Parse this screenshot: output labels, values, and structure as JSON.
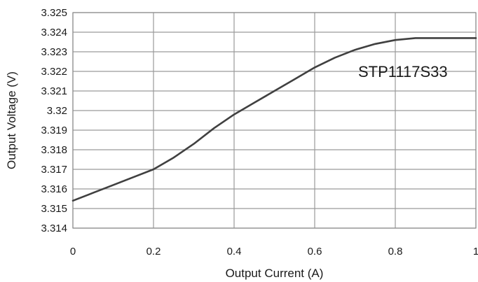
{
  "chart_data": {
    "type": "line",
    "title": "",
    "xlabel": "Output Current (A)",
    "ylabel": "Output Voltage (V)",
    "xlim": [
      0,
      1
    ],
    "ylim": [
      3.314,
      3.325
    ],
    "x_ticks": [
      "0",
      "0.2",
      "0.4",
      "0.6",
      "0.8",
      "1"
    ],
    "y_ticks": [
      "3.314",
      "3.315",
      "3.316",
      "3.317",
      "3.318",
      "3.319",
      "3.32",
      "3.321",
      "3.322",
      "3.323",
      "3.324",
      "3.325"
    ],
    "grid": true,
    "annotation": "STP1117S33",
    "series": [
      {
        "x": [
          0,
          0.05,
          0.1,
          0.15,
          0.2,
          0.25,
          0.3,
          0.35,
          0.4,
          0.45,
          0.5,
          0.55,
          0.6,
          0.65,
          0.7,
          0.75,
          0.8,
          0.85,
          0.9,
          0.95,
          1.0
        ],
        "y": [
          3.3154,
          3.3158,
          3.3162,
          3.3166,
          3.317,
          3.3176,
          3.3183,
          3.3191,
          3.3198,
          3.3204,
          3.321,
          3.3216,
          3.3222,
          3.3227,
          3.3231,
          3.3234,
          3.3236,
          3.3237,
          3.3237,
          3.3237,
          3.3237
        ],
        "color": "#404040"
      }
    ]
  }
}
